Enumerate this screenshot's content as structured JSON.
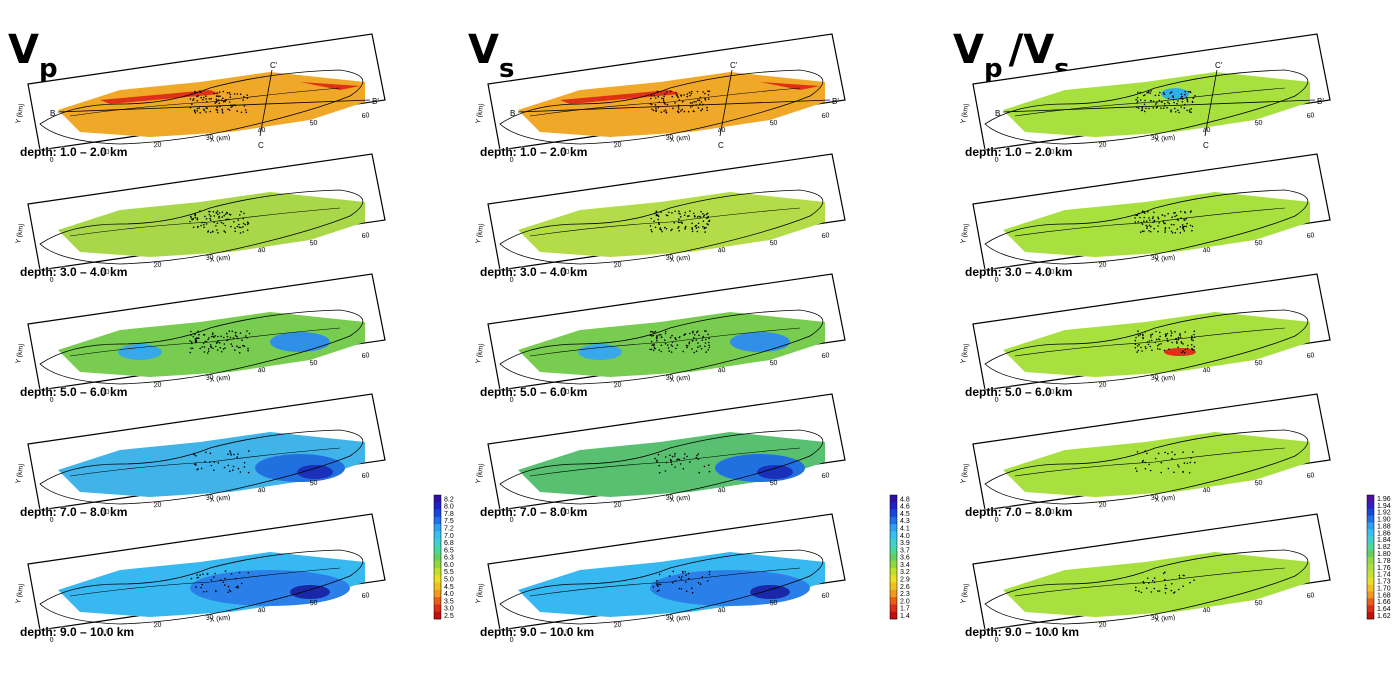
{
  "columns": [
    {
      "id": "vp",
      "title_main": "V",
      "title_sub": "p",
      "title_rest": "",
      "colorbar": [
        "8.2",
        "8.0",
        "7.8",
        "7.5",
        "7.2",
        "7.0",
        "6.8",
        "6.5",
        "6.3",
        "6.0",
        "5.5",
        "5.0",
        "4.5",
        "4.0",
        "3.5",
        "3.0",
        "2.5"
      ],
      "panels": [
        {
          "depth": "depth: 1.0 – 2.0 km",
          "fill": "#f0a828"
        },
        {
          "depth": "depth: 3.0 – 4.0 km",
          "fill": "#a8d84a"
        },
        {
          "depth": "depth: 5.0 – 6.0 km",
          "fill": "#78cc50"
        },
        {
          "depth": "depth: 7.0 – 8.0 km",
          "fill": "#40b4e8"
        },
        {
          "depth": "depth: 9.0 – 10.0 km",
          "fill": "#38b8f0"
        }
      ]
    },
    {
      "id": "vs",
      "title_main": "V",
      "title_sub": "s",
      "title_rest": "",
      "colorbar": [
        "4.8",
        "4.6",
        "4.5",
        "4.3",
        "4.1",
        "4.0",
        "3.9",
        "3.7",
        "3.6",
        "3.4",
        "3.2",
        "2.9",
        "2.6",
        "2.3",
        "2.0",
        "1.7",
        "1.4"
      ],
      "panels": [
        {
          "depth": "depth: 1.0 – 2.0 km",
          "fill": "#f0a828"
        },
        {
          "depth": "depth: 3.0 – 4.0 km",
          "fill": "#b4dc48"
        },
        {
          "depth": "depth: 5.0 – 6.0 km",
          "fill": "#78cc50"
        },
        {
          "depth": "depth: 7.0 – 8.0 km",
          "fill": "#58c070"
        },
        {
          "depth": "depth: 9.0 – 10.0 km",
          "fill": "#38b8f0"
        }
      ]
    },
    {
      "id": "vpvs",
      "title_main": "V",
      "title_sub": "p",
      "title_rest": "/V",
      "title_sub2": "s",
      "colorbar": [
        "1.96",
        "1.94",
        "1.92",
        "1.90",
        "1.88",
        "1.86",
        "1.84",
        "1.82",
        "1.80",
        "1.78",
        "1.76",
        "1.74",
        "1.73",
        "1.70",
        "1.68",
        "1.66",
        "1.64",
        "1.62"
      ],
      "panels": [
        {
          "depth": "depth: 1.0 – 2.0 km",
          "fill": "#a8e040"
        },
        {
          "depth": "depth: 3.0 – 4.0 km",
          "fill": "#a8e040"
        },
        {
          "depth": "depth: 5.0 – 6.0 km",
          "fill": "#a8e040"
        },
        {
          "depth": "depth: 7.0 – 8.0 km",
          "fill": "#a8e040"
        },
        {
          "depth": "depth: 9.0 – 10.0 km",
          "fill": "#a8e040"
        }
      ]
    }
  ],
  "axis": {
    "x_label": "X (km)",
    "y_label": "Y (km)",
    "x_ticks": [
      "0",
      "10",
      "20",
      "30",
      "40",
      "50",
      "60"
    ],
    "y_ticks": [
      "10",
      "20"
    ]
  },
  "profile_labels": {
    "b": "B",
    "b_prime": "B'",
    "c": "C",
    "c_prime": "C'"
  },
  "colors": {
    "outline": "#000000",
    "hot_patch": "#e03018",
    "deep_blue": "#1848d8",
    "quake_dot": "#000000"
  }
}
